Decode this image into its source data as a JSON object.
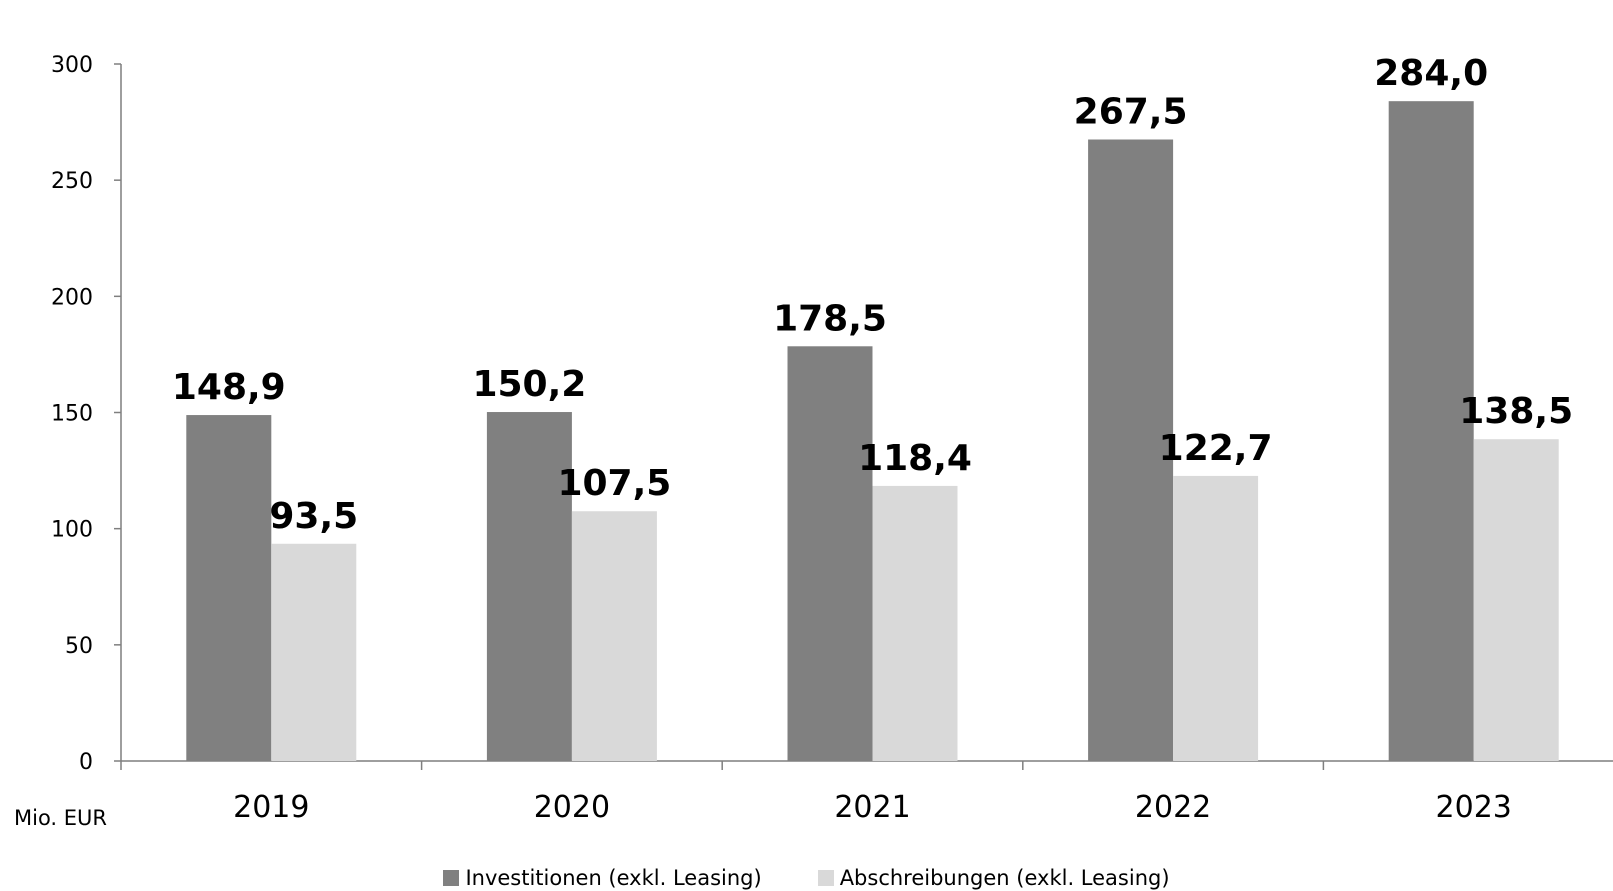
{
  "chart_data": {
    "type": "bar",
    "categories": [
      "2019",
      "2020",
      "2021",
      "2022",
      "2023"
    ],
    "series": [
      {
        "name": "Investitionen (exkl. Leasing)",
        "values": [
          148.9,
          150.2,
          178.5,
          267.5,
          284.0
        ],
        "labels": [
          "148,9",
          "150,2",
          "178,5",
          "267,5",
          "284,0"
        ],
        "color": "#808080"
      },
      {
        "name": "Abschreibungen (exkl. Leasing)",
        "values": [
          93.5,
          107.5,
          118.4,
          122.7,
          138.5
        ],
        "labels": [
          "93,5",
          "107,5",
          "118,4",
          "122,7",
          "138,5"
        ],
        "color": "#d9d9d9"
      }
    ],
    "yticks": [
      "0",
      "50",
      "100",
      "150",
      "200",
      "250",
      "300"
    ],
    "ylim": [
      0,
      300
    ],
    "unit_label": "Mio. EUR",
    "grid": false,
    "legend_position": "bottom"
  }
}
